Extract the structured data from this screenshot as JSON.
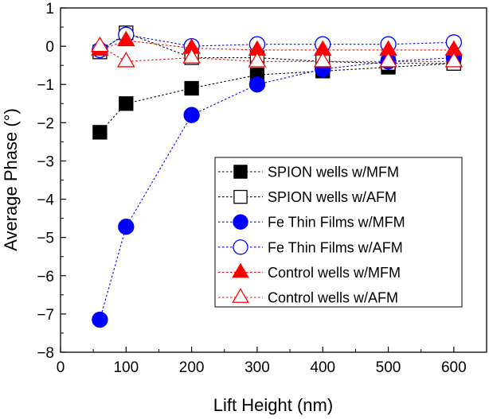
{
  "chart_data": {
    "type": "scatter",
    "title": "",
    "xlabel": "Lift Height (nm)",
    "ylabel": "Average Phase (°)",
    "xlim": [
      0,
      650
    ],
    "ylim": [
      -8,
      1
    ],
    "xticks": [
      0,
      100,
      200,
      300,
      400,
      500,
      600
    ],
    "yticks": [
      1,
      0,
      -1,
      -2,
      -3,
      -4,
      -5,
      -6,
      -7,
      -8
    ],
    "x": [
      60,
      100,
      200,
      300,
      400,
      500,
      600
    ],
    "legend_position": "center-right",
    "series": [
      {
        "name": "SPION wells w/MFM",
        "marker": "square",
        "filled": true,
        "color": "#000000",
        "values": [
          -2.25,
          -1.5,
          -1.1,
          -0.75,
          -0.65,
          -0.55,
          -0.45
        ]
      },
      {
        "name": "SPION wells w/AFM",
        "marker": "square",
        "filled": false,
        "color": "#000000",
        "values": [
          -0.15,
          0.35,
          -0.3,
          -0.3,
          -0.4,
          -0.45,
          -0.45
        ]
      },
      {
        "name": "Fe Thin Films w/MFM",
        "marker": "circle",
        "filled": true,
        "color": "#0000ff",
        "values": [
          -7.15,
          -4.72,
          -1.8,
          -1.0,
          -0.6,
          -0.4,
          -0.3
        ]
      },
      {
        "name": "Fe Thin Films w/AFM",
        "marker": "circle",
        "filled": false,
        "color": "#0000ff",
        "values": [
          -0.1,
          0.3,
          0.0,
          0.05,
          0.05,
          0.05,
          0.1
        ]
      },
      {
        "name": "Control wells w/MFM",
        "marker": "triangle",
        "filled": true,
        "color": "#ff0000",
        "values": [
          -0.1,
          0.15,
          -0.05,
          -0.1,
          -0.1,
          -0.1,
          -0.1
        ]
      },
      {
        "name": "Control wells w/AFM",
        "marker": "triangle",
        "filled": false,
        "color": "#ff0000",
        "values": [
          0.0,
          -0.4,
          -0.3,
          -0.4,
          -0.4,
          -0.4,
          -0.4
        ]
      }
    ]
  }
}
